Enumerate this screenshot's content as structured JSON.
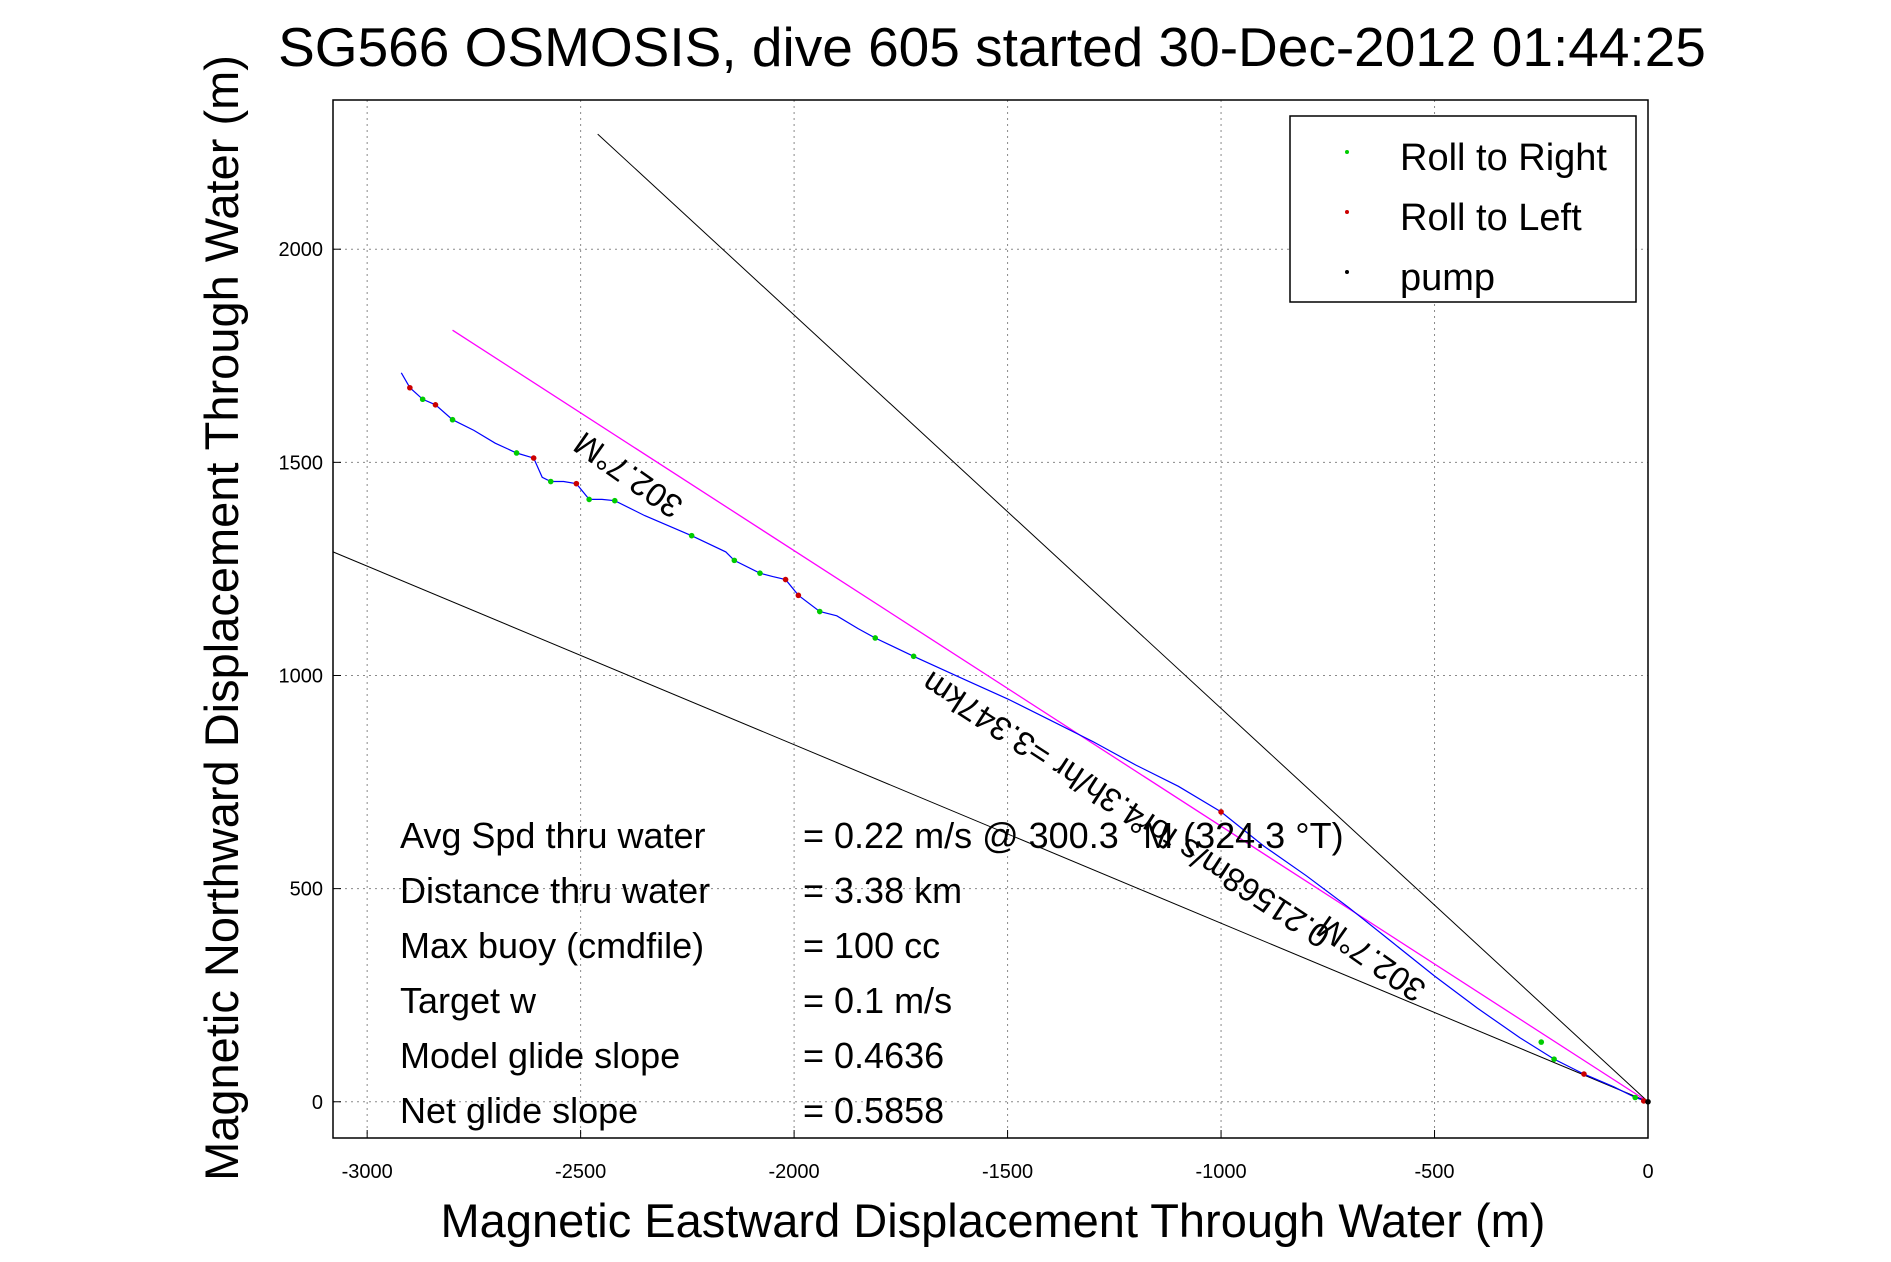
{
  "chart_data": {
    "type": "scatter",
    "title": "SG566 OSMOSIS, dive 605 started 30-Dec-2012 01:44:25",
    "xlabel": "Magnetic Eastward Displacement Through Water (m)",
    "ylabel": "Magnetic Northward Displacement Through Water (m)",
    "xlim": [
      -3080,
      0
    ],
    "ylim": [
      -85,
      2350
    ],
    "xticks": [
      -3000,
      -2500,
      -2000,
      -1500,
      -1000,
      -500,
      0
    ],
    "yticks": [
      0,
      500,
      1000,
      1500,
      2000
    ],
    "xtick_labels": [
      "-3000",
      "-2500",
      "-2000",
      "-1500",
      "-1000",
      "-500",
      "0"
    ],
    "ytick_labels": [
      "0",
      "500",
      "1000",
      "1500",
      "2000"
    ],
    "grid": true,
    "legend_position": "top-right",
    "legend": [
      {
        "label": "Roll to Right",
        "color": "#00cc00"
      },
      {
        "label": "Roll to Left",
        "color": "#cc0000"
      },
      {
        "label": "pump",
        "color": "#000000"
      }
    ],
    "track_color": "#0000ff",
    "heading_line_color": "#ff00ff",
    "track": [
      {
        "x": -2920,
        "y": 1710
      },
      {
        "x": -2900,
        "y": 1675
      },
      {
        "x": -2870,
        "y": 1648
      },
      {
        "x": -2840,
        "y": 1635
      },
      {
        "x": -2800,
        "y": 1600
      },
      {
        "x": -2750,
        "y": 1575
      },
      {
        "x": -2700,
        "y": 1545
      },
      {
        "x": -2650,
        "y": 1522
      },
      {
        "x": -2610,
        "y": 1510
      },
      {
        "x": -2590,
        "y": 1465
      },
      {
        "x": -2570,
        "y": 1455
      },
      {
        "x": -2540,
        "y": 1455
      },
      {
        "x": -2510,
        "y": 1450
      },
      {
        "x": -2480,
        "y": 1413
      },
      {
        "x": -2450,
        "y": 1413
      },
      {
        "x": -2420,
        "y": 1410
      },
      {
        "x": -2350,
        "y": 1375
      },
      {
        "x": -2240,
        "y": 1328
      },
      {
        "x": -2160,
        "y": 1290
      },
      {
        "x": -2140,
        "y": 1270
      },
      {
        "x": -2080,
        "y": 1240
      },
      {
        "x": -2050,
        "y": 1232
      },
      {
        "x": -2020,
        "y": 1225
      },
      {
        "x": -1990,
        "y": 1188
      },
      {
        "x": -1940,
        "y": 1150
      },
      {
        "x": -1900,
        "y": 1140
      },
      {
        "x": -1850,
        "y": 1110
      },
      {
        "x": -1810,
        "y": 1088
      },
      {
        "x": -1720,
        "y": 1045
      },
      {
        "x": -1600,
        "y": 990
      },
      {
        "x": -1500,
        "y": 945
      },
      {
        "x": -1400,
        "y": 895
      },
      {
        "x": -1300,
        "y": 845
      },
      {
        "x": -1200,
        "y": 790
      },
      {
        "x": -1100,
        "y": 740
      },
      {
        "x": -1000,
        "y": 680
      },
      {
        "x": -900,
        "y": 600
      },
      {
        "x": -800,
        "y": 530
      },
      {
        "x": -700,
        "y": 455
      },
      {
        "x": -600,
        "y": 375
      },
      {
        "x": -500,
        "y": 295
      },
      {
        "x": -400,
        "y": 220
      },
      {
        "x": -300,
        "y": 150
      },
      {
        "x": -220,
        "y": 100
      },
      {
        "x": -150,
        "y": 65
      },
      {
        "x": -80,
        "y": 35
      },
      {
        "x": -30,
        "y": 10
      },
      {
        "x": 0,
        "y": 0
      }
    ],
    "roll_right_points": [
      {
        "x": -2870,
        "y": 1648
      },
      {
        "x": -2800,
        "y": 1600
      },
      {
        "x": -2650,
        "y": 1522
      },
      {
        "x": -2570,
        "y": 1455
      },
      {
        "x": -2480,
        "y": 1413
      },
      {
        "x": -2420,
        "y": 1410
      },
      {
        "x": -2240,
        "y": 1328
      },
      {
        "x": -2140,
        "y": 1270
      },
      {
        "x": -2080,
        "y": 1240
      },
      {
        "x": -1940,
        "y": 1150
      },
      {
        "x": -1810,
        "y": 1088
      },
      {
        "x": -1720,
        "y": 1045
      },
      {
        "x": -250,
        "y": 140
      },
      {
        "x": -220,
        "y": 100
      },
      {
        "x": -30,
        "y": 10
      }
    ],
    "roll_left_points": [
      {
        "x": -2900,
        "y": 1675
      },
      {
        "x": -2840,
        "y": 1635
      },
      {
        "x": -2610,
        "y": 1510
      },
      {
        "x": -2510,
        "y": 1450
      },
      {
        "x": -2020,
        "y": 1225
      },
      {
        "x": -1990,
        "y": 1188
      },
      {
        "x": -1000,
        "y": 680
      },
      {
        "x": -150,
        "y": 65
      },
      {
        "x": -10,
        "y": 2
      }
    ],
    "pump_points": [
      {
        "x": 0,
        "y": 0
      }
    ],
    "heading_line": [
      {
        "x": -2800,
        "y": 1810
      },
      {
        "x": 0,
        "y": 0
      }
    ],
    "bound_lines": [
      [
        {
          "x": -2460,
          "y": 2270
        },
        {
          "x": 0,
          "y": 0
        }
      ],
      [
        {
          "x": -3080,
          "y": 1290
        },
        {
          "x": 0,
          "y": 0
        }
      ]
    ],
    "annotations": [
      {
        "text": "302.7°M",
        "x": -2385,
        "y": 1475,
        "angle": 35
      },
      {
        "text": "0.21568m/s for4.3h/hr =3.347km",
        "x": -1220,
        "y": 690,
        "angle": 33
      },
      {
        "text": "302.7°M",
        "x": -645,
        "y": 340,
        "angle": 35
      }
    ]
  },
  "stats": [
    {
      "label": "Avg Spd thru water",
      "value": "=  0.22 m/s @ 300.3 °M (324.3 °T)"
    },
    {
      "label": "Distance thru water",
      "value": "=  3.38 km"
    },
    {
      "label": "Max buoy (cmdfile)",
      "value": "= 100 cc"
    },
    {
      "label": "Target w",
      "value": "= 0.1 m/s"
    },
    {
      "label": "Model glide slope",
      "value": "= 0.4636"
    },
    {
      "label": "Net glide slope",
      "value": "= 0.5858"
    }
  ]
}
